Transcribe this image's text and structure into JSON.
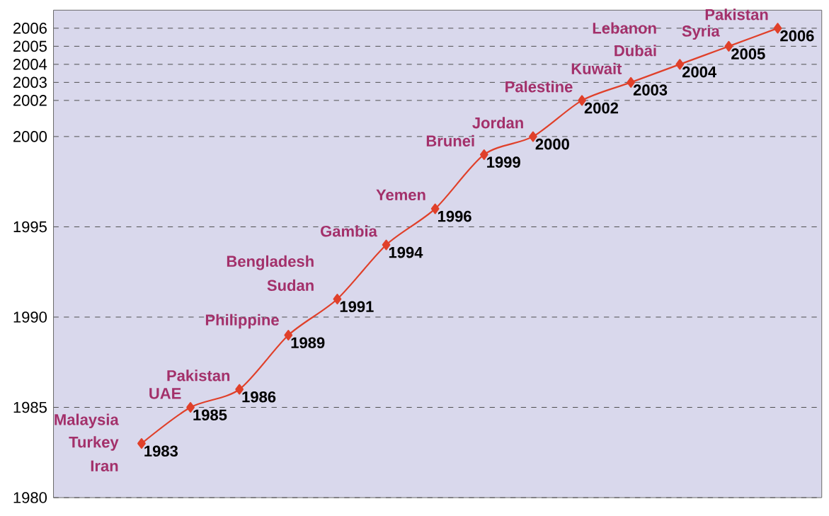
{
  "chart_data": {
    "type": "line",
    "categories": [
      null,
      null,
      null,
      null,
      null,
      null,
      null,
      null,
      null,
      null,
      null,
      null,
      null,
      null
    ],
    "values": [
      1983,
      1985,
      1986,
      1989,
      1991,
      1994,
      1996,
      1999,
      2000,
      2002,
      2003,
      2004,
      2005,
      2006
    ],
    "color": "#e0402a",
    "marker": "diamond",
    "line_style": "solid",
    "data_labels": true,
    "grid": "y",
    "tick_labels": "y",
    "ylim": [
      1980,
      2007
    ],
    "yticks": [
      1980,
      1985,
      1990,
      1995,
      2000,
      2002,
      2003,
      2004,
      2005,
      2006
    ],
    "annotations": [
      "Malaysia",
      "Turkey",
      "Iran",
      "UAE",
      "Pakistan",
      "Philippine",
      "Bengladesh",
      "Sudan",
      "Gambia",
      "Yemen",
      "Brunei",
      "Jordan",
      "Palestine",
      "Kuwait",
      "Lebanon",
      "Dubai",
      "Syria",
      "Pakistan"
    ]
  }
}
